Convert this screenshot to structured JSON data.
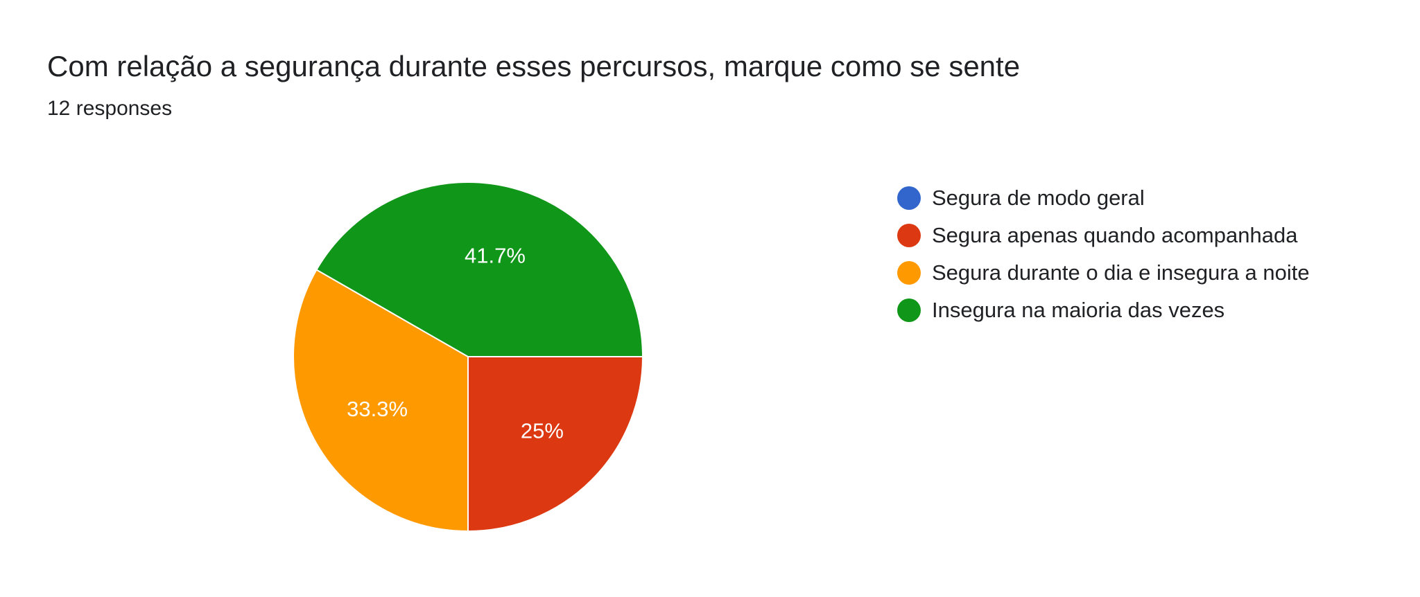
{
  "chart_data": {
    "type": "pie",
    "title": "Com relação a segurança durante esses percursos, marque como se sente",
    "subtitle": "12 responses",
    "legend_position": "right",
    "slices": [
      {
        "name": "Segura de modo geral",
        "value": 0,
        "label": "",
        "color": "#3366cc"
      },
      {
        "name": "Segura apenas quando acompanhada",
        "value": 25,
        "label": "25%",
        "color": "#dc3912"
      },
      {
        "name": "Segura durante o dia e insegura a noite",
        "value": 33.3,
        "label": "33.3%",
        "color": "#ff9900"
      },
      {
        "name": "Insegura na maioria das vezes",
        "value": 41.7,
        "label": "41.7%",
        "color": "#109618"
      }
    ]
  }
}
